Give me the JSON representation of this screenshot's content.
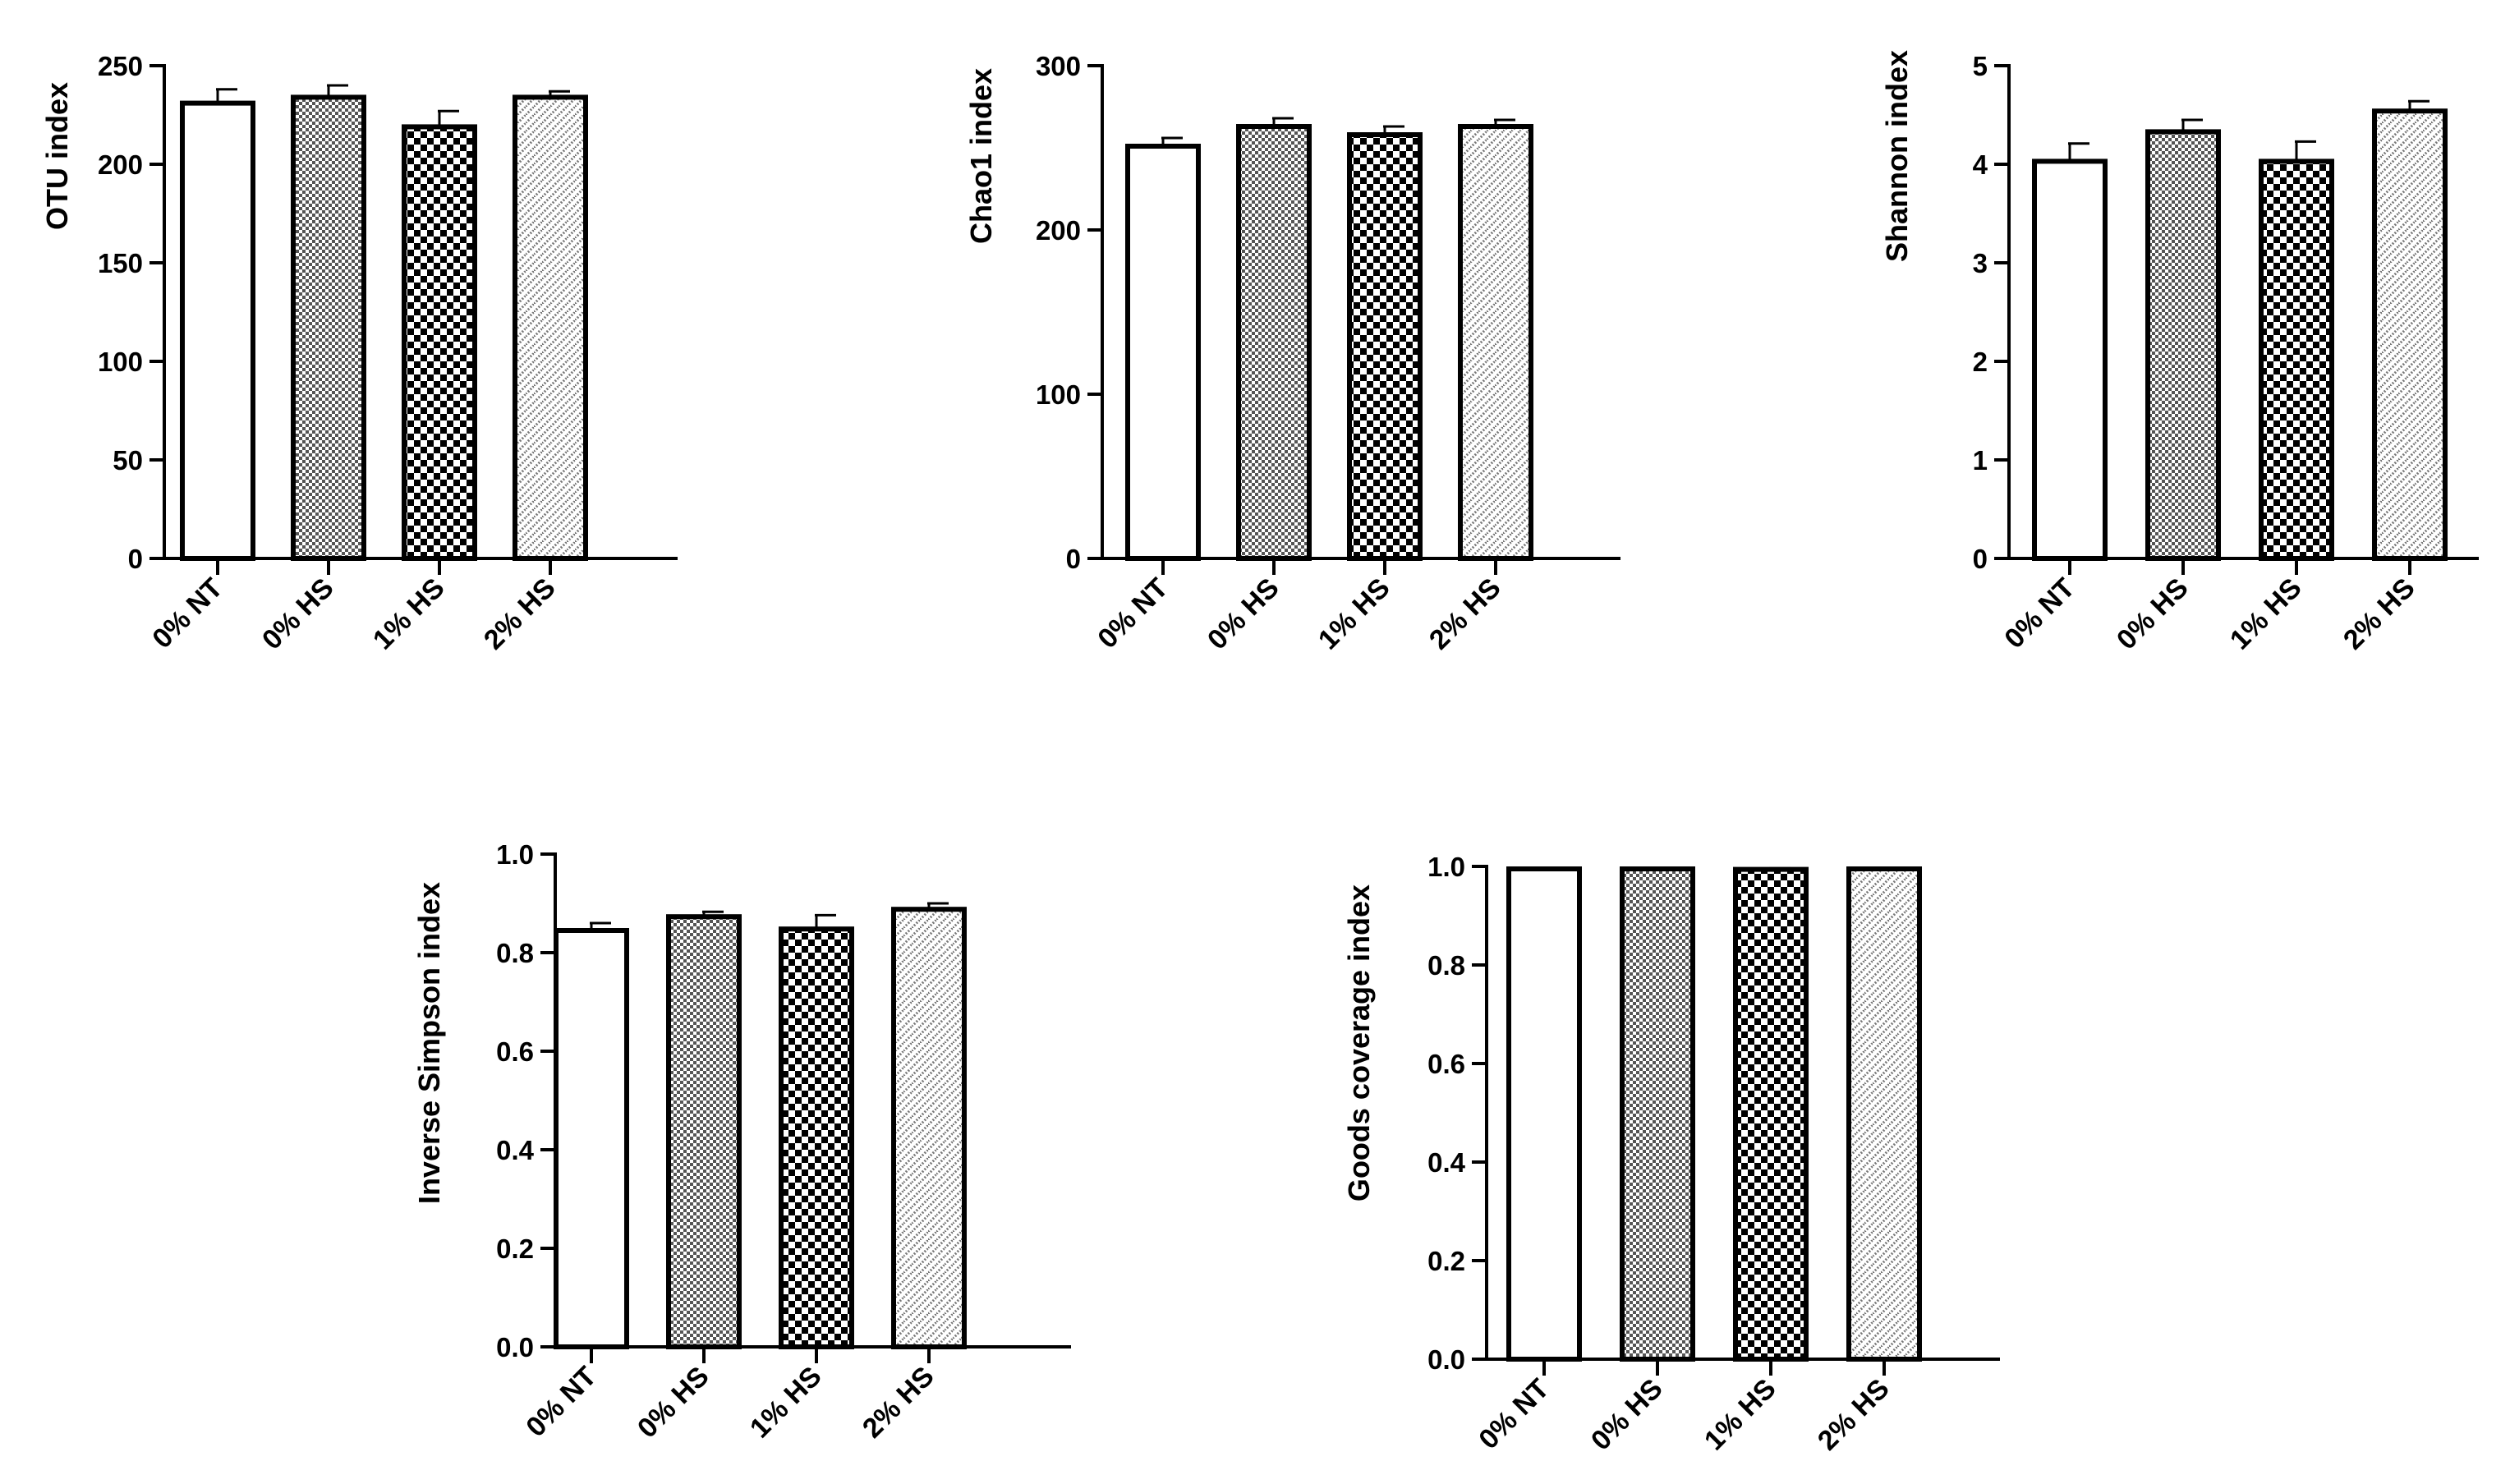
{
  "chart_data": [
    {
      "type": "bar",
      "ylabel": "OTU index",
      "categories": [
        "0% NT",
        "0% HS",
        "1% HS",
        "2% HS"
      ],
      "values": [
        231,
        234,
        219,
        234
      ],
      "errors": [
        7,
        6,
        8,
        3
      ],
      "ylim": [
        0,
        250
      ],
      "yticks": [
        0,
        50,
        100,
        150,
        200,
        250
      ],
      "tick_labels": [
        "0",
        "50",
        "100",
        "150",
        "200",
        "250"
      ]
    },
    {
      "type": "bar",
      "ylabel": "Chao1 index",
      "categories": [
        "0% NT",
        "0% HS",
        "1% HS",
        "2% HS"
      ],
      "values": [
        251,
        263,
        258,
        263
      ],
      "errors": [
        5,
        5,
        5,
        4
      ],
      "ylim": [
        0,
        300
      ],
      "yticks": [
        0,
        100,
        200,
        300
      ],
      "tick_labels": [
        "0",
        "100",
        "200",
        "300"
      ]
    },
    {
      "type": "bar",
      "ylabel": "Shannon index",
      "categories": [
        "0% NT",
        "0% HS",
        "1% HS",
        "2% HS"
      ],
      "values": [
        4.03,
        4.33,
        4.03,
        4.54
      ],
      "errors": [
        0.18,
        0.12,
        0.2,
        0.1
      ],
      "ylim": [
        0,
        5
      ],
      "yticks": [
        0,
        1,
        2,
        3,
        4,
        5
      ],
      "tick_labels": [
        "0",
        "1",
        "2",
        "3",
        "4",
        "5"
      ]
    },
    {
      "type": "bar",
      "ylabel": "Inverse Simpson index",
      "categories": [
        "0% NT",
        "0% HS",
        "1% HS",
        "2% HS"
      ],
      "values": [
        0.845,
        0.873,
        0.848,
        0.888
      ],
      "errors": [
        0.015,
        0.01,
        0.028,
        0.012
      ],
      "ylim": [
        0,
        1.0
      ],
      "yticks": [
        0,
        0.2,
        0.4,
        0.6,
        0.8,
        1.0
      ],
      "tick_labels": [
        "0.0",
        "0.2",
        "0.4",
        "0.6",
        "0.8",
        "1.0"
      ]
    },
    {
      "type": "bar",
      "ylabel": "Goods coverage index",
      "categories": [
        "0% NT",
        "0% HS",
        "1% HS",
        "2% HS"
      ],
      "values": [
        0.995,
        0.995,
        0.994,
        0.995
      ],
      "errors": [
        0.001,
        0.001,
        0.002,
        0.001
      ],
      "ylim": [
        0,
        1.0
      ],
      "yticks": [
        0,
        0.2,
        0.4,
        0.6,
        0.8,
        1.0
      ],
      "tick_labels": [
        "0.0",
        "0.2",
        "0.4",
        "0.6",
        "0.8",
        "1.0"
      ]
    }
  ]
}
